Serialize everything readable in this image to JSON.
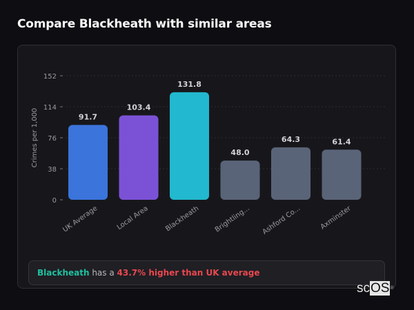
{
  "header": {
    "title": "Compare Blackheath with similar areas"
  },
  "chart_data": {
    "type": "bar",
    "title": "",
    "xlabel": "",
    "ylabel": "Crimes per 1,000",
    "ylim": [
      0,
      152
    ],
    "yticks": [
      0,
      38,
      76,
      114,
      152
    ],
    "grid": true,
    "categories": [
      "UK Average",
      "Local Area",
      "Blackheath",
      "Brightling...",
      "Ashford Co...",
      "Axminster"
    ],
    "values": [
      91.7,
      103.4,
      131.8,
      48.0,
      64.3,
      61.4
    ],
    "value_labels": [
      "91.7",
      "103.4",
      "131.8",
      "48.0",
      "64.3",
      "61.4"
    ],
    "colors": [
      "#3b74db",
      "#7b52d6",
      "#22b8cf",
      "#5a6478",
      "#5a6478",
      "#5a6478"
    ]
  },
  "summary": {
    "area": "Blackheath",
    "connector": " has a ",
    "difference": "43.7% higher than UK average"
  },
  "logo": {
    "text_a": "sc",
    "text_b": "OS",
    "mark": "®"
  }
}
